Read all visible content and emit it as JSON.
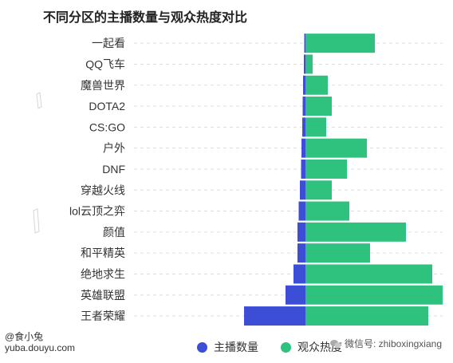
{
  "title": "不同分区的主播数量与观众热度对比",
  "colors": {
    "anchors": "#3d4ed6",
    "heat": "#2ec27e",
    "grid": "#dddddd"
  },
  "legend": {
    "anchors_label": "主播数量",
    "heat_label": "观众热度"
  },
  "watermark": {
    "author": "@食小兔",
    "site": "yuba.douyu.com",
    "wechat": "微信号: zhiboxingxiang"
  },
  "chart_data": {
    "type": "bar",
    "orientation": "horizontal-diverging",
    "categories": [
      "一起看",
      "QQ飞车",
      "魔兽世界",
      "DOTA2",
      "CS:GO",
      "户外",
      "DNF",
      "穿越火线",
      "lol云顶之弈",
      "颜值",
      "和平精英",
      "绝地求生",
      "英雄联盟",
      "王者荣耀"
    ],
    "series": [
      {
        "name": "主播数量",
        "direction": "left",
        "values": [
          1.5,
          2,
          3,
          3.5,
          4,
          5,
          5.5,
          7,
          8.5,
          10,
          10,
          15,
          25,
          77
        ]
      },
      {
        "name": "观众热度",
        "direction": "right",
        "values": [
          87,
          9,
          28,
          33,
          26,
          77,
          52,
          33,
          55,
          126,
          81,
          159,
          172,
          154
        ]
      }
    ],
    "grid": "horizontal-dashed",
    "legend_position": "bottom-center"
  }
}
